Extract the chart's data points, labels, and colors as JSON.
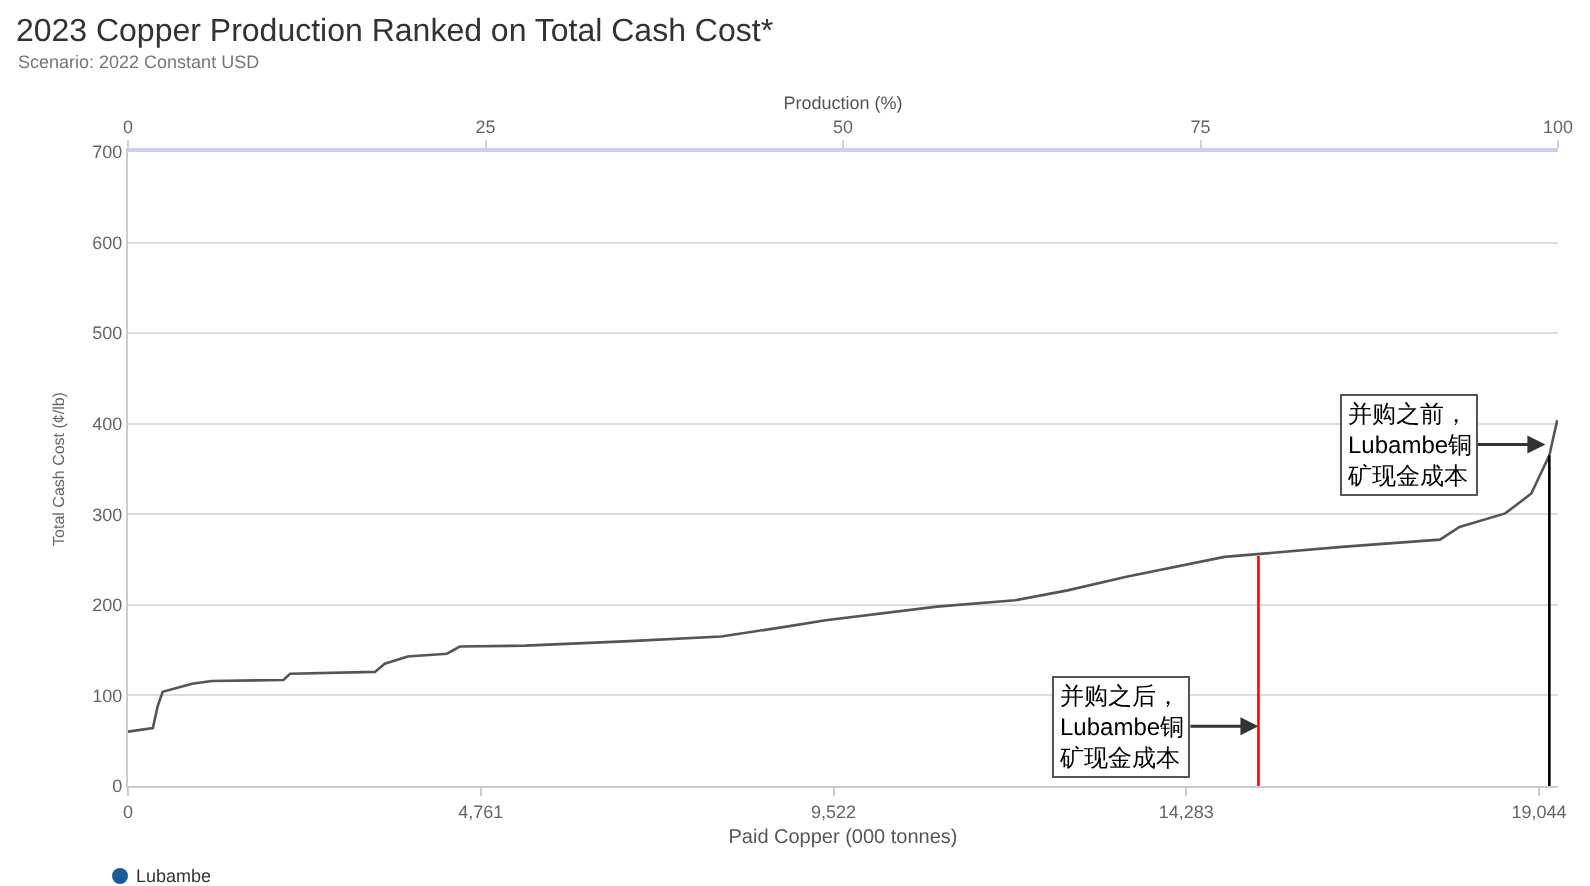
{
  "chart_data": {
    "type": "line",
    "title": "2023 Copper Production Ranked on Total Cash Cost*",
    "subtitle": "Scenario: 2022 Constant USD",
    "xlabel": "Paid Copper (000 tonnes)",
    "x2label": "Production (%)",
    "ylabel": "Total Cash Cost (¢/lb)",
    "xlim": [
      0,
      19300
    ],
    "xticks": [
      0,
      {
        "value": 4761,
        "label": "4,761"
      },
      {
        "value": 9522,
        "label": "9,522"
      },
      {
        "value": 14283,
        "label": "14,283"
      },
      {
        "value": 19044,
        "label": "19,044"
      }
    ],
    "x2lim": [
      0,
      100
    ],
    "x2ticks": [
      0,
      25,
      50,
      75,
      100
    ],
    "ylim": [
      0,
      700
    ],
    "yticks": [
      0,
      100,
      200,
      300,
      400,
      500,
      600,
      700
    ],
    "grid": "y",
    "series": [
      {
        "color": "#555555",
        "x": [
          0,
          336,
          400,
          468,
          865,
          1129,
          2098,
          2187,
          3333,
          3465,
          3774,
          4303,
          4479,
          5364,
          6771,
          8005,
          8886,
          9416,
          10917,
          11975,
          12681,
          13475,
          14798,
          16383,
          17706,
          17971,
          18588,
          18940,
          19183,
          19290
        ],
        "values": [
          60,
          64,
          88,
          104,
          113,
          116,
          117,
          124,
          126,
          135,
          143,
          146,
          154,
          155,
          160,
          165,
          176,
          183,
          198,
          205,
          216,
          231,
          253,
          264,
          272,
          286,
          301,
          323,
          365,
          404
        ]
      },
      {
        "color": "#ff0000",
        "x": [
          15257,
          15257
        ],
        "values": [
          0,
          254
        ]
      },
      {
        "color": "#000000",
        "x": [
          19183,
          19183
        ],
        "values": [
          0,
          365
        ]
      }
    ],
    "annotations": [
      {
        "text": "并购之后，Lubambe铜矿现金成本",
        "x": 15257,
        "y": 66
      },
      {
        "text": "并购之前，Lubambe铜矿现金成本",
        "x": 19130,
        "y": 377
      },
      "Lubambe"
    ]
  }
}
